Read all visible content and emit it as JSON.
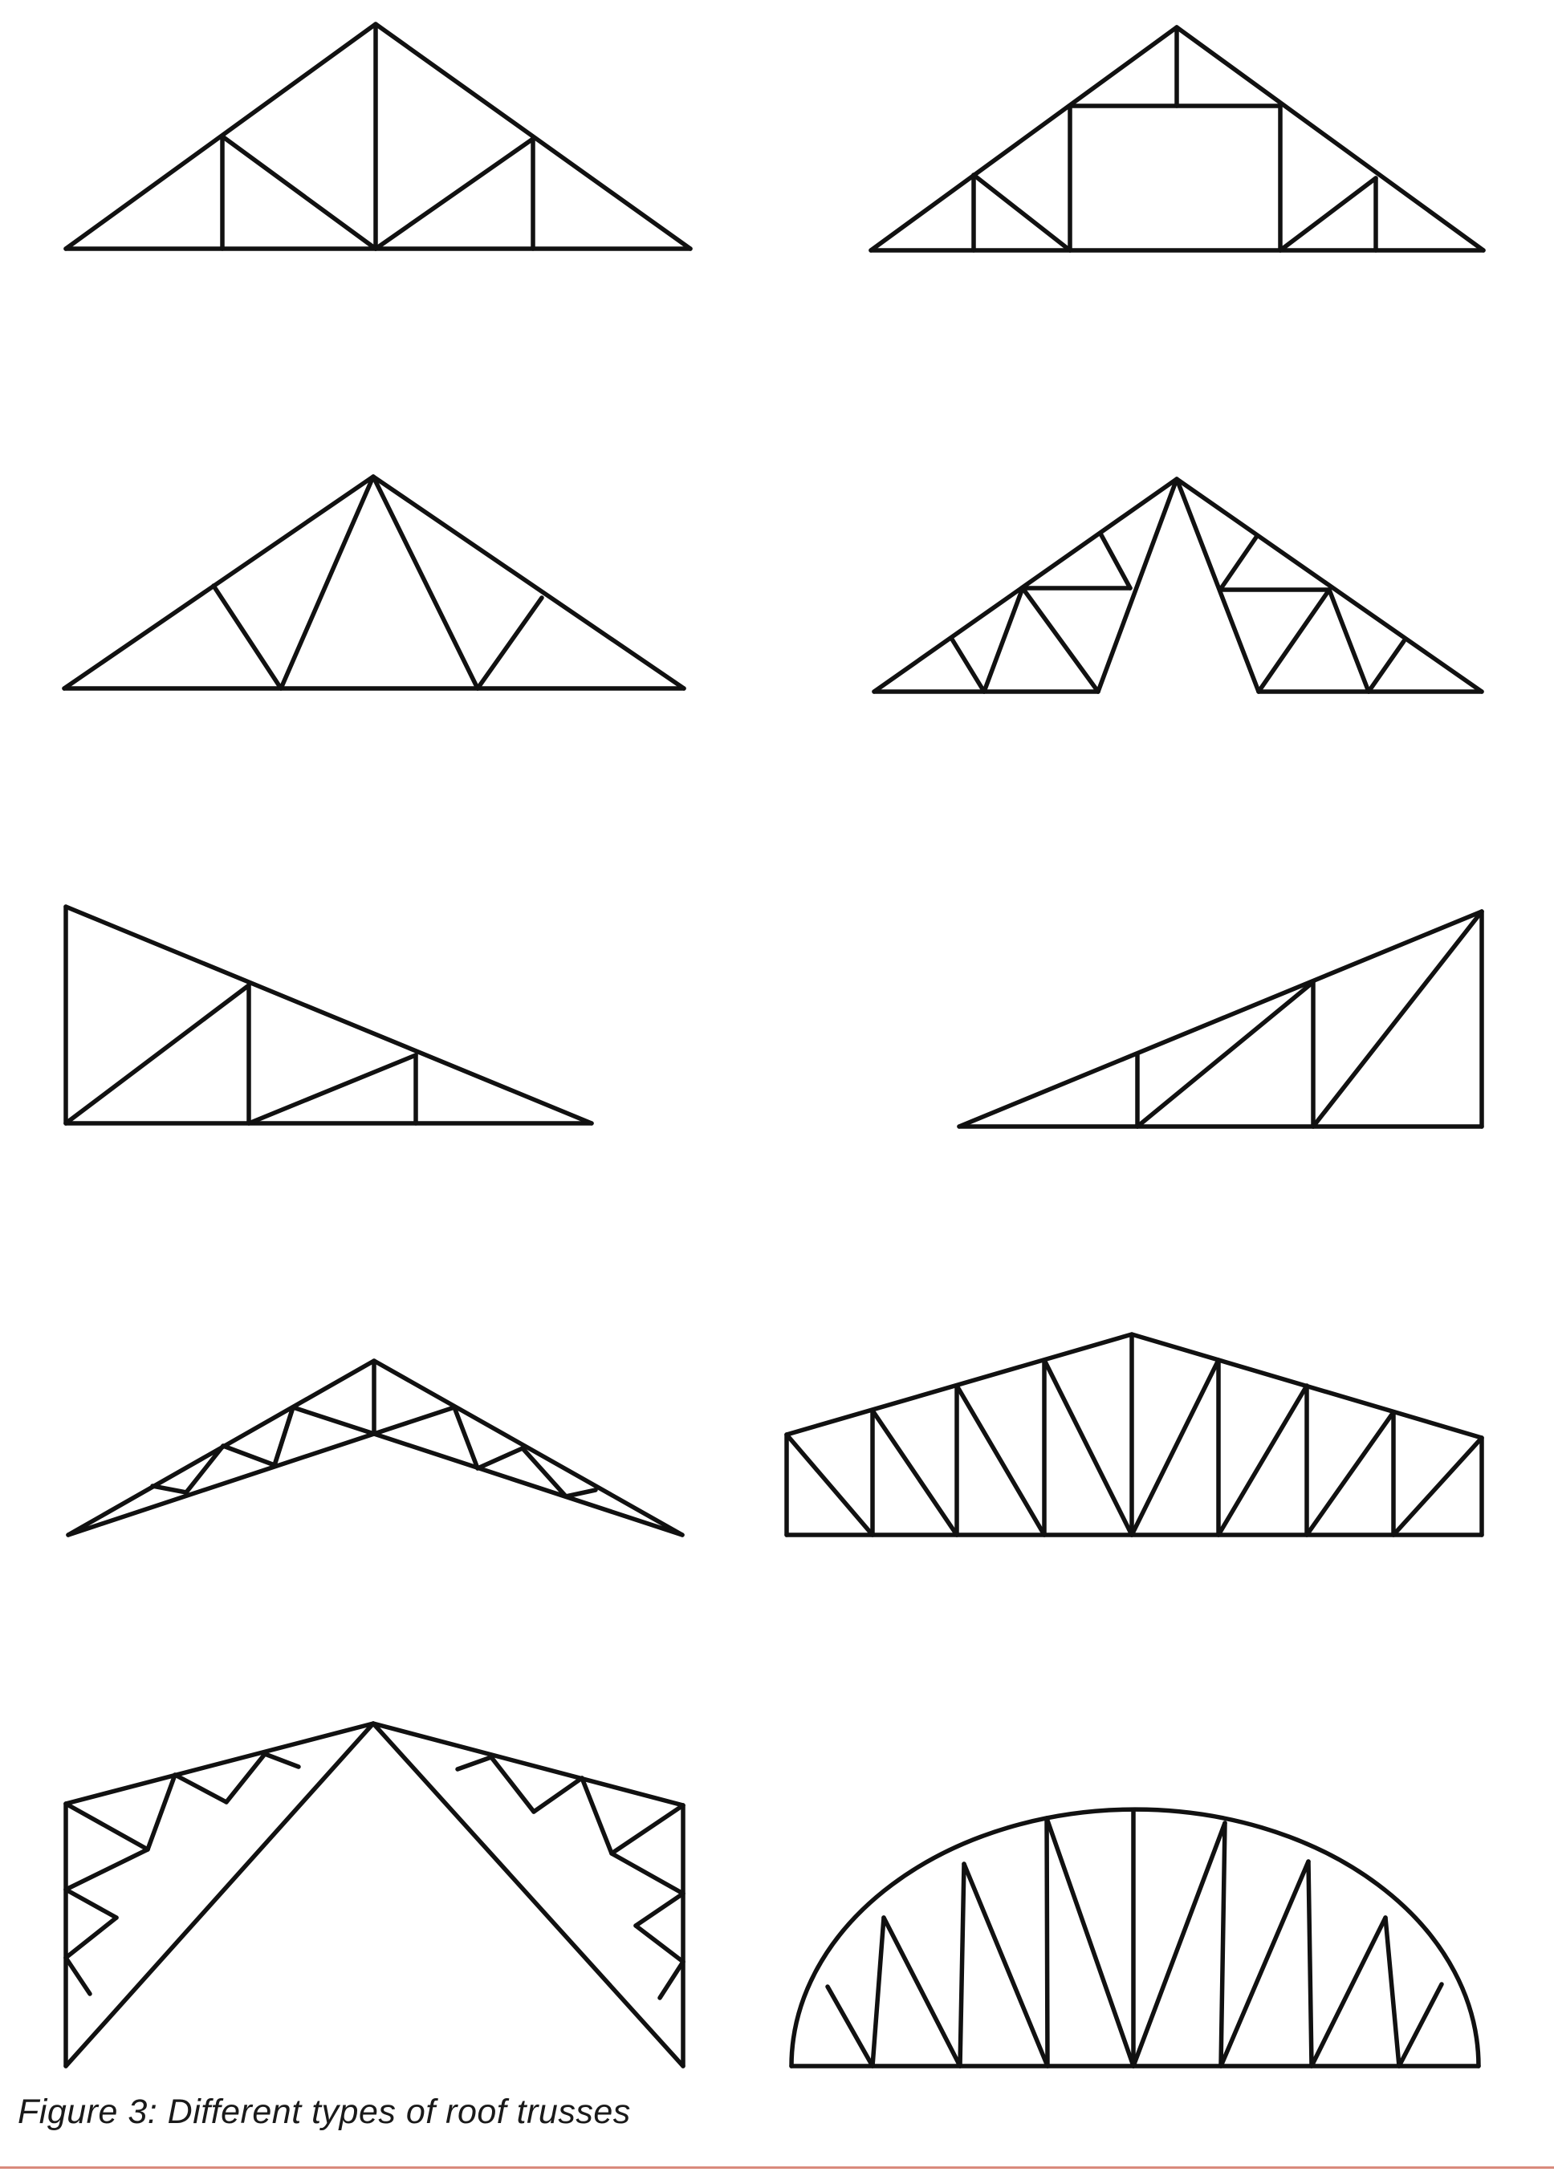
{
  "figure": {
    "caption": "Figure 3: Different types of roof trusses",
    "truss_count": 10
  },
  "colors": {
    "line": "#111111",
    "background": "#ffffff",
    "bottom_rule": "#d98a7c"
  }
}
